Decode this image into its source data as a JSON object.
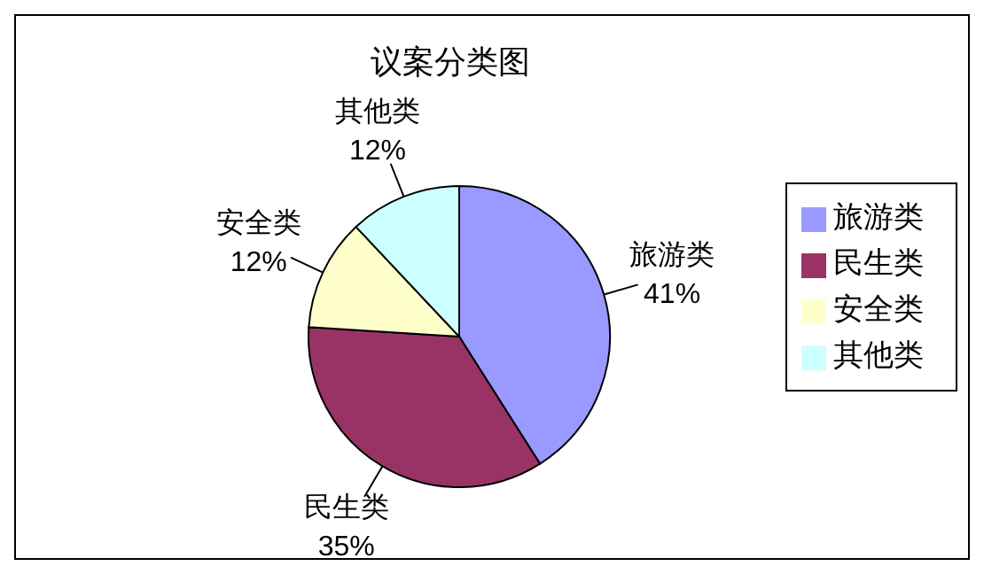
{
  "chart_data": {
    "type": "pie",
    "title": "议案分类图",
    "categories": [
      "旅游类",
      "民生类",
      "安全类",
      "其他类"
    ],
    "values": [
      41,
      35,
      12,
      12
    ],
    "colors": [
      "#9999ff",
      "#993366",
      "#ffffcc",
      "#ccffff"
    ],
    "value_labels": [
      "41%",
      "35%",
      "12%",
      "12%"
    ],
    "legend": "right"
  }
}
